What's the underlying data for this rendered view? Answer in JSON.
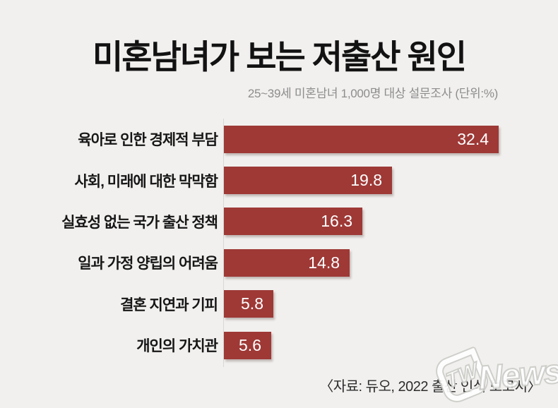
{
  "header": {
    "title": "미혼남녀가 보는 저출산 원인",
    "subtitle": "25~39세 미혼남녀 1,000명 대상 설문조사 (단위:%)"
  },
  "chart_data": {
    "type": "bar",
    "orientation": "horizontal",
    "title": "미혼남녀가 보는 저출산 원인",
    "subtitle": "25~39세 미혼남녀 1,000명 대상 설문조사",
    "unit": "%",
    "categories": [
      "육아로 인한 경제적 부담",
      "사회, 미래에 대한 막막함",
      "실효성 없는 국가 출산 정책",
      "일과 가정 양립의 어려움",
      "결혼 지연과 기피",
      "개인의 가치관"
    ],
    "values": [
      32.4,
      19.8,
      16.3,
      14.8,
      5.8,
      5.6
    ],
    "value_labels": [
      "32.4",
      "19.8",
      "16.3",
      "14.8",
      "5.8",
      "5.6"
    ],
    "xlim": [
      0,
      32.4
    ],
    "grid": false,
    "legend": "none",
    "value_label_position": "inside-end"
  },
  "footer": {
    "source": "〈자료: 듀오, 2022 출산 인식 보고서〉"
  },
  "watermark": {
    "logo_text": "TW",
    "name_text": "News"
  },
  "colors": {
    "background": "#f1f0ee",
    "bar": "#9e3936",
    "value_text": "#ffffff",
    "axis_line": "#d8d7d3",
    "title_text": "#121212",
    "subtitle_text": "#8d8d8d",
    "source_text": "#2d2d2d"
  }
}
